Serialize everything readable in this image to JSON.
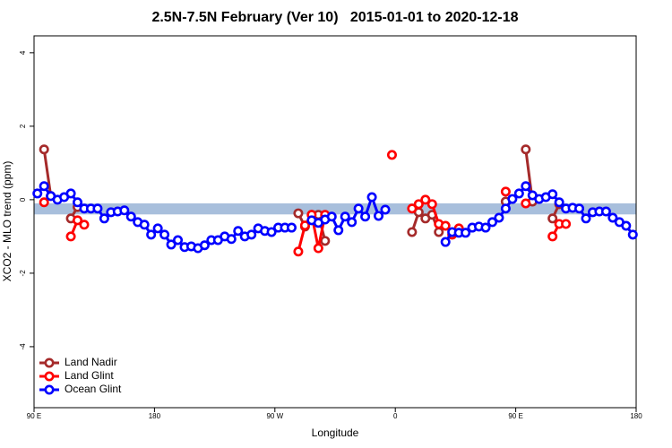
{
  "chart_data": {
    "type": "line",
    "title": "2.5N-7.5N February (Ver 10)   2015-01-01 to 2020-12-18",
    "x_label": "Longitude",
    "y_label": "XCO2 - MLO trend (ppm)",
    "xlim": [
      90,
      540
    ],
    "xticks": [
      {
        "value": 90,
        "label": "90 E"
      },
      180,
      {
        "value": 270,
        "label": "90 W"
      },
      {
        "value": 360,
        "label": "0"
      },
      {
        "value": 450,
        "label": "90 E"
      },
      {
        "value": 540,
        "label": "180"
      }
    ],
    "ylim": [
      -5.66,
      4.46
    ],
    "yticks": [
      -4,
      -2,
      0,
      2,
      4
    ],
    "band": [
      -0.4,
      -0.1
    ],
    "band_color": "#a8bfdc",
    "legend": "bottom-left",
    "x": [
      92.5,
      97.5,
      102.5,
      107.5,
      112.5,
      117.5,
      122.5,
      127.5,
      132.5,
      137.5,
      142.5,
      147.5,
      152.5,
      157.5,
      162.5,
      167.5,
      172.5,
      177.5,
      182.5,
      187.5,
      192.5,
      197.5,
      202.5,
      207.5,
      212.5,
      217.5,
      222.5,
      227.5,
      232.5,
      237.5,
      242.5,
      247.5,
      252.5,
      257.5,
      262.5,
      267.5,
      272.5,
      277.5,
      282.5,
      287.5,
      292.5,
      297.5,
      302.5,
      307.5,
      312.5,
      317.5,
      322.5,
      327.5,
      332.5,
      337.5,
      342.5,
      347.5,
      352.5,
      357.5,
      362.5,
      367.5,
      372.5,
      377.5,
      382.5,
      387.5,
      392.5,
      397.5,
      402.5,
      407.5,
      412.5,
      417.5,
      422.5,
      427.5,
      432.5,
      437.5,
      442.5,
      447.5,
      452.5,
      457.5,
      462.5,
      467.5,
      472.5,
      477.5,
      482.5,
      487.5,
      492.5,
      497.5,
      502.5,
      507.5,
      512.5,
      517.5,
      522.5,
      527.5,
      532.5,
      537.5
    ],
    "series": [
      {
        "name": "Land Nadir",
        "color": "#a52a2a",
        "values": [
          null,
          1.37,
          0.1,
          null,
          null,
          -0.51,
          -0.2,
          null,
          null,
          null,
          null,
          null,
          null,
          null,
          null,
          null,
          null,
          null,
          null,
          null,
          null,
          null,
          null,
          null,
          null,
          null,
          null,
          null,
          null,
          null,
          null,
          null,
          null,
          null,
          null,
          null,
          null,
          null,
          null,
          -0.37,
          -0.73,
          -0.41,
          -0.41,
          -1.12,
          null,
          null,
          null,
          null,
          null,
          null,
          null,
          null,
          null,
          null,
          null,
          null,
          -0.88,
          -0.34,
          -0.51,
          -0.41,
          -0.88,
          null,
          null,
          null,
          null,
          null,
          null,
          null,
          null,
          null,
          -0.05,
          null,
          null,
          1.37,
          -0.05,
          null,
          null,
          -0.51,
          -0.12,
          null,
          null,
          null,
          null,
          null,
          null,
          null,
          null,
          null,
          null,
          null
        ]
      },
      {
        "name": "Land Glint",
        "color": "#ff0000",
        "values": [
          null,
          -0.07,
          null,
          null,
          null,
          -1,
          -0.56,
          -0.68,
          null,
          null,
          null,
          null,
          null,
          null,
          null,
          null,
          null,
          null,
          null,
          null,
          null,
          null,
          null,
          null,
          null,
          null,
          null,
          null,
          null,
          null,
          null,
          null,
          null,
          null,
          null,
          null,
          null,
          null,
          null,
          -1.41,
          -0.7,
          -0.41,
          -1.32,
          -0.41,
          null,
          null,
          null,
          null,
          null,
          null,
          null,
          null,
          null,
          1.22,
          null,
          null,
          -0.24,
          -0.12,
          0,
          -0.12,
          -0.66,
          -0.71,
          -0.95,
          -0.78,
          null,
          null,
          null,
          null,
          null,
          null,
          0.22,
          null,
          null,
          -0.1,
          null,
          null,
          null,
          -1,
          -0.66,
          -0.66,
          null,
          null,
          null,
          null,
          null,
          null,
          null,
          null,
          null,
          null
        ]
      },
      {
        "name": "Ocean Glint",
        "color": "#0000ff",
        "values": [
          0.17,
          0.37,
          0.1,
          0,
          0.07,
          0.17,
          -0.07,
          -0.24,
          -0.24,
          -0.24,
          -0.51,
          -0.34,
          -0.32,
          -0.29,
          -0.46,
          -0.61,
          -0.68,
          -0.95,
          -0.78,
          -0.95,
          -1.22,
          -1.1,
          -1.29,
          -1.27,
          -1.32,
          -1.24,
          -1.1,
          -1.1,
          -1,
          -1.07,
          -0.85,
          -1,
          -0.95,
          -0.78,
          -0.85,
          -0.88,
          -0.76,
          -0.76,
          -0.76,
          null,
          null,
          -0.56,
          -0.63,
          -0.54,
          -0.46,
          -0.83,
          -0.46,
          -0.61,
          -0.24,
          -0.46,
          0.07,
          -0.44,
          -0.27,
          null,
          null,
          null,
          null,
          null,
          null,
          null,
          null,
          -1.15,
          -0.88,
          -0.9,
          -0.9,
          -0.76,
          -0.73,
          -0.76,
          -0.61,
          -0.49,
          -0.24,
          0.02,
          0.17,
          0.37,
          0.12,
          0.02,
          0.07,
          0.15,
          -0.07,
          -0.24,
          -0.22,
          -0.24,
          -0.51,
          -0.34,
          -0.32,
          -0.32,
          -0.49,
          -0.61,
          -0.71,
          -0.95
        ]
      }
    ]
  }
}
